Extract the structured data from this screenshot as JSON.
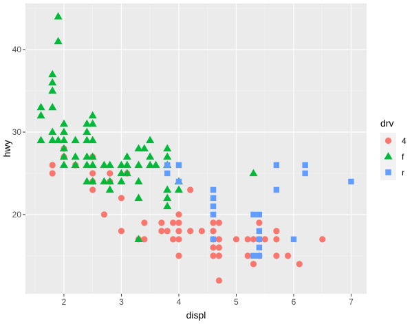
{
  "chart_data": {
    "type": "scatter",
    "title": "",
    "xlabel": "displ",
    "ylabel": "hwy",
    "xlim": [
      1.33,
      7.27
    ],
    "ylim": [
      10.4,
      45.6
    ],
    "x_ticks": [
      2,
      3,
      4,
      5,
      6,
      7
    ],
    "y_ticks": [
      20,
      30,
      40
    ],
    "x_tick_labels": [
      "2",
      "3",
      "4",
      "5",
      "6",
      "7"
    ],
    "y_tick_labels": [
      "20",
      "30",
      "40"
    ],
    "grid": true,
    "legend": {
      "title": "drv",
      "placement": "right",
      "entries": [
        {
          "label": "4",
          "shape": "circle",
          "color": "#F8766D"
        },
        {
          "label": "f",
          "shape": "triangle",
          "color": "#00BA38"
        },
        {
          "label": "r",
          "shape": "square",
          "color": "#619CFF"
        }
      ]
    },
    "series": [
      {
        "name": "4",
        "shape": "circle",
        "color": "#F8766D",
        "points": [
          [
            1.8,
            26
          ],
          [
            1.8,
            25
          ],
          [
            2.0,
            28
          ],
          [
            2.0,
            27
          ],
          [
            2.5,
            27
          ],
          [
            2.5,
            25
          ],
          [
            2.5,
            23
          ],
          [
            2.5,
            24
          ],
          [
            2.2,
            26
          ],
          [
            2.7,
            20
          ],
          [
            2.8,
            25
          ],
          [
            2.8,
            24
          ],
          [
            3.0,
            22
          ],
          [
            3.1,
            25
          ],
          [
            3.3,
            17
          ],
          [
            3.4,
            17
          ],
          [
            3.4,
            19
          ],
          [
            3.7,
            19
          ],
          [
            3.7,
            18
          ],
          [
            3.9,
            17
          ],
          [
            3.9,
            19
          ],
          [
            4.0,
            15
          ],
          [
            4.0,
            17
          ],
          [
            4.0,
            18
          ],
          [
            4.0,
            19
          ],
          [
            4.0,
            20
          ],
          [
            4.2,
            18
          ],
          [
            4.2,
            23
          ],
          [
            4.4,
            18
          ],
          [
            4.6,
            17
          ],
          [
            4.6,
            19
          ],
          [
            4.6,
            18
          ],
          [
            4.6,
            16
          ],
          [
            4.6,
            15
          ],
          [
            4.7,
            19
          ],
          [
            4.7,
            17
          ],
          [
            4.7,
            16
          ],
          [
            4.7,
            15
          ],
          [
            4.7,
            12
          ],
          [
            5.0,
            17
          ],
          [
            5.2,
            17
          ],
          [
            5.2,
            15
          ],
          [
            5.3,
            14
          ],
          [
            5.3,
            17
          ],
          [
            5.4,
            17
          ],
          [
            5.4,
            15
          ],
          [
            5.4,
            19
          ],
          [
            5.5,
            17
          ],
          [
            5.7,
            17
          ],
          [
            5.7,
            15
          ],
          [
            5.7,
            18
          ],
          [
            5.9,
            15
          ],
          [
            6.1,
            14
          ],
          [
            6.5,
            17
          ],
          [
            3.8,
            18
          ],
          [
            3.0,
            18
          ]
        ]
      },
      {
        "name": "f",
        "shape": "triangle",
        "color": "#00BA38",
        "points": [
          [
            1.6,
            33
          ],
          [
            1.6,
            32
          ],
          [
            1.6,
            29
          ],
          [
            1.8,
            37
          ],
          [
            1.8,
            36
          ],
          [
            1.8,
            35
          ],
          [
            1.8,
            33
          ],
          [
            1.8,
            30
          ],
          [
            1.8,
            29
          ],
          [
            1.9,
            44
          ],
          [
            1.9,
            41
          ],
          [
            1.9,
            29
          ],
          [
            2.0,
            31
          ],
          [
            2.0,
            30
          ],
          [
            2.0,
            29
          ],
          [
            2.0,
            28
          ],
          [
            2.0,
            27
          ],
          [
            2.0,
            26
          ],
          [
            2.2,
            29
          ],
          [
            2.2,
            27
          ],
          [
            2.4,
            31
          ],
          [
            2.4,
            30
          ],
          [
            2.4,
            29
          ],
          [
            2.4,
            27
          ],
          [
            2.4,
            26
          ],
          [
            2.4,
            24
          ],
          [
            2.5,
            32
          ],
          [
            2.5,
            31
          ],
          [
            2.5,
            29
          ],
          [
            2.5,
            27
          ],
          [
            2.5,
            26
          ],
          [
            2.5,
            24
          ],
          [
            2.7,
            26
          ],
          [
            2.7,
            24
          ],
          [
            2.8,
            26
          ],
          [
            2.8,
            24
          ],
          [
            2.8,
            23
          ],
          [
            3.0,
            26
          ],
          [
            3.0,
            25
          ],
          [
            3.0,
            24
          ],
          [
            3.1,
            27
          ],
          [
            3.1,
            26
          ],
          [
            3.1,
            25
          ],
          [
            3.3,
            28
          ],
          [
            3.3,
            26
          ],
          [
            3.3,
            24
          ],
          [
            3.3,
            22
          ],
          [
            3.3,
            17
          ],
          [
            3.4,
            28
          ],
          [
            3.5,
            29
          ],
          [
            3.5,
            27
          ],
          [
            3.5,
            26
          ],
          [
            3.6,
            26
          ],
          [
            3.8,
            28
          ],
          [
            3.8,
            27
          ],
          [
            3.8,
            26
          ],
          [
            3.8,
            23
          ],
          [
            3.8,
            22
          ],
          [
            3.8,
            21
          ],
          [
            4.0,
            24
          ],
          [
            4.0,
            23
          ],
          [
            5.3,
            25
          ],
          [
            2.2,
            26
          ]
        ]
      },
      {
        "name": "r",
        "shape": "square",
        "color": "#619CFF",
        "points": [
          [
            3.8,
            26
          ],
          [
            3.8,
            25
          ],
          [
            4.0,
            26
          ],
          [
            4.0,
            24
          ],
          [
            4.6,
            23
          ],
          [
            4.6,
            22
          ],
          [
            4.6,
            21
          ],
          [
            4.6,
            20
          ],
          [
            4.6,
            17
          ],
          [
            5.3,
            20
          ],
          [
            5.3,
            15
          ],
          [
            5.4,
            20
          ],
          [
            5.4,
            18
          ],
          [
            5.4,
            17
          ],
          [
            5.4,
            16
          ],
          [
            5.4,
            15
          ],
          [
            5.7,
            26
          ],
          [
            5.7,
            23
          ],
          [
            6.0,
            17
          ],
          [
            6.2,
            26
          ],
          [
            6.2,
            25
          ],
          [
            7.0,
            24
          ]
        ]
      }
    ]
  }
}
